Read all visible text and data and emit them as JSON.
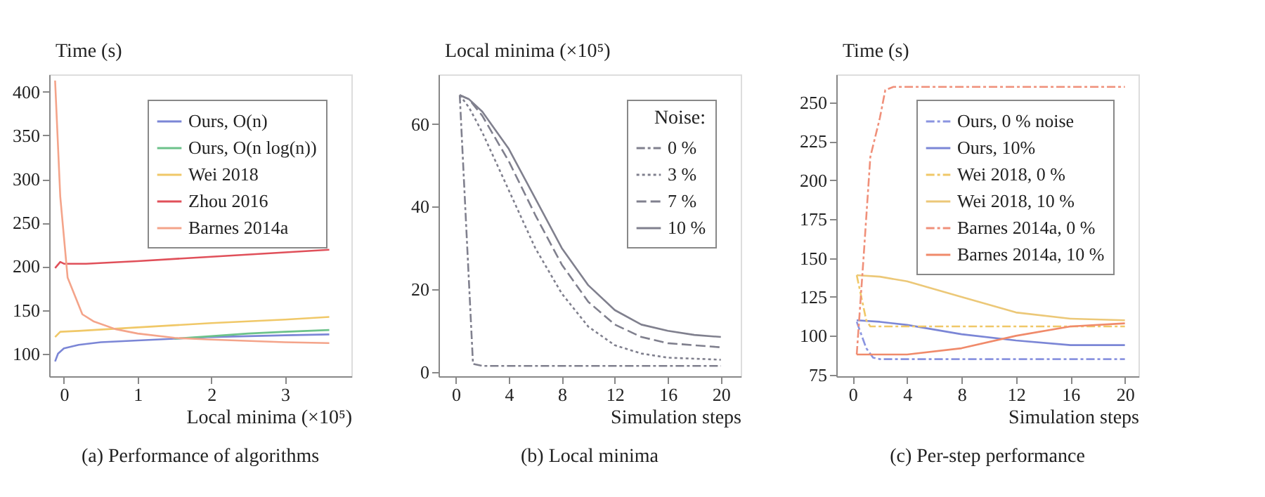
{
  "chart_data": [
    {
      "type": "line",
      "xlabel": "Local minima (×10⁵)",
      "ylabel": "Time (s)",
      "xlim": [
        -0.2,
        3.9
      ],
      "xticks": [
        0,
        1,
        2,
        3
      ],
      "ylim": [
        74,
        420
      ],
      "yticks": [
        100,
        150,
        200,
        250,
        300,
        350,
        400
      ],
      "grid": false,
      "legend": "top right",
      "marker": "none",
      "annotations": [
        "(a)  Performance of algorithms"
      ],
      "series": [
        {
          "name": "Ours, O(n)",
          "color": "#7b86d6",
          "line_style": "solid",
          "x": [
            -0.12,
            -0.08,
            0,
            0.2,
            0.5,
            1,
            1.5,
            2,
            2.5,
            3,
            3.6
          ],
          "values": [
            91,
            100,
            106,
            110,
            113,
            115,
            117,
            119,
            120,
            121,
            122
          ]
        },
        {
          "name": "Ours, O(n log(n))",
          "color": "#6cc28a",
          "line_style": "solid",
          "x": [
            1.5,
            2,
            2.5,
            3,
            3.6
          ],
          "values": [
            117,
            120,
            123,
            125,
            127
          ]
        },
        {
          "name": "Wei 2018",
          "color": "#f0c868",
          "line_style": "solid",
          "x": [
            -0.12,
            -0.05,
            0.2,
            1,
            2,
            3,
            3.6
          ],
          "values": [
            119,
            125,
            126,
            130,
            135,
            139,
            142
          ]
        },
        {
          "name": "Zhou 2016",
          "color": "#e0505a",
          "line_style": "solid",
          "x": [
            -0.12,
            -0.05,
            0,
            0.3,
            1,
            2,
            3,
            3.6
          ],
          "values": [
            198,
            205,
            203,
            203,
            206,
            211,
            216,
            219
          ]
        },
        {
          "name": "Barnes 2014a",
          "color": "#f4a48a",
          "line_style": "solid",
          "x": [
            -0.12,
            -0.05,
            0.05,
            0.25,
            0.4,
            0.7,
            1,
            1.5,
            2,
            3,
            3.6
          ],
          "values": [
            413,
            280,
            187,
            145,
            137,
            128,
            123,
            118,
            116,
            113,
            112
          ]
        }
      ]
    },
    {
      "type": "line",
      "xlabel": "Simulation steps",
      "ylabel": "Local minima (×10⁵)",
      "legend_title": "Noise:",
      "xlim": [
        -1.3,
        21.5
      ],
      "xticks": [
        0,
        4,
        8,
        12,
        16,
        20
      ],
      "ylim": [
        -1,
        72
      ],
      "yticks": [
        0,
        20,
        40,
        60
      ],
      "grid": false,
      "legend": "top right",
      "marker": "none",
      "annotations": [
        "(b) Local minima"
      ],
      "series": [
        {
          "name": "0 %",
          "color": "#80808e",
          "line_style": "dashdot",
          "x": [
            0.3,
            1.3,
            2,
            20
          ],
          "values": [
            67,
            2,
            1.5,
            1.5
          ]
        },
        {
          "name": "3 %",
          "color": "#80808e",
          "line_style": "dotted",
          "x": [
            0.3,
            1,
            2,
            4,
            6,
            8,
            10,
            12,
            14,
            16,
            20
          ],
          "values": [
            67,
            64,
            58,
            44,
            30,
            19,
            11,
            6.5,
            4.5,
            3.5,
            3
          ]
        },
        {
          "name": "7 %",
          "color": "#80808e",
          "line_style": "dashed",
          "x": [
            0.3,
            1,
            2,
            4,
            6,
            8,
            10,
            12,
            14,
            16,
            20
          ],
          "values": [
            67,
            66,
            62,
            51,
            38,
            26,
            17,
            11.5,
            8.5,
            7,
            6
          ]
        },
        {
          "name": "10 %",
          "color": "#80808e",
          "line_style": "solid",
          "x": [
            0.3,
            1,
            2,
            4,
            6,
            8,
            10,
            12,
            14,
            16,
            18,
            20
          ],
          "values": [
            67,
            66,
            63,
            54,
            42,
            30,
            21,
            15,
            11.5,
            10,
            9,
            8.5
          ]
        }
      ]
    },
    {
      "type": "line",
      "xlabel": "Simulation steps",
      "ylabel": "Time (s)",
      "xlim": [
        -1.2,
        21
      ],
      "xticks": [
        0,
        4,
        8,
        12,
        16,
        20
      ],
      "ylim": [
        74,
        268
      ],
      "yticks": [
        75,
        100,
        125,
        150,
        175,
        200,
        225,
        250
      ],
      "grid": false,
      "legend": "top right",
      "marker": "none",
      "annotations": [
        "(c) Per-step performance"
      ],
      "series": [
        {
          "name": "Ours,  0 % noise",
          "color": "#8a94e0",
          "line_style": "dashdot",
          "x": [
            0.3,
            1,
            1.5,
            2,
            20
          ],
          "values": [
            109,
            92,
            86,
            85,
            85
          ]
        },
        {
          "name": "Ours,  10%",
          "color": "#7b86d6",
          "line_style": "solid",
          "x": [
            0.3,
            2,
            4,
            8,
            12,
            16,
            20
          ],
          "values": [
            110,
            109,
            107,
            101,
            97,
            94,
            94
          ]
        },
        {
          "name": "Wei 2018,  0 %",
          "color": "#f0c868",
          "line_style": "dashdot",
          "x": [
            0.3,
            1,
            1.3,
            20
          ],
          "values": [
            139,
            110,
            106,
            106
          ]
        },
        {
          "name": "Wei 2018, 10 %",
          "color": "#ecc878",
          "line_style": "solid",
          "x": [
            0.3,
            2,
            4,
            8,
            12,
            16,
            20
          ],
          "values": [
            139,
            138,
            135,
            125,
            115,
            111,
            110
          ]
        },
        {
          "name": "Barnes 2014a,  0 %",
          "color": "#f0907a",
          "line_style": "dashdot",
          "x": [
            0.3,
            0.8,
            1.3,
            2,
            2.4,
            3,
            20
          ],
          "values": [
            88,
            150,
            215,
            240,
            258,
            260,
            260
          ]
        },
        {
          "name": "Barnes 2014a, 10 %",
          "color": "#f08a6a",
          "line_style": "solid",
          "x": [
            0.3,
            2,
            4,
            8,
            12,
            16,
            20
          ],
          "values": [
            88,
            88,
            88,
            92,
            100,
            106,
            108
          ]
        }
      ]
    }
  ]
}
